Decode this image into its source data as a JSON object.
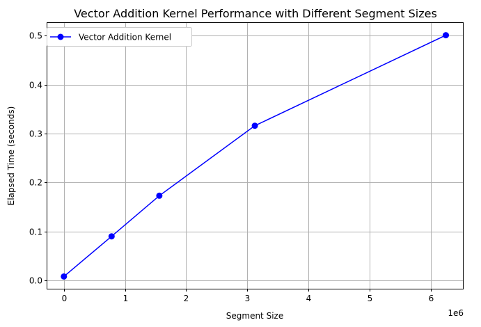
{
  "chart_data": {
    "type": "line",
    "title": "Vector Addition Kernel Performance with Different Segment Sizes",
    "xlabel": "Segment Size",
    "ylabel": "Elapsed Time (seconds)",
    "x_offset_text": "1e6",
    "x_scale": 1000000,
    "xlim": [
      -270000,
      6540000
    ],
    "ylim": [
      -0.017,
      0.526
    ],
    "x_ticks": [
      0,
      1000000,
      2000000,
      3000000,
      4000000,
      5000000,
      6000000
    ],
    "x_tick_labels": [
      "0",
      "1",
      "2",
      "3",
      "4",
      "5",
      "6"
    ],
    "y_ticks": [
      0.0,
      0.1,
      0.2,
      0.3,
      0.4,
      0.5
    ],
    "y_tick_labels": [
      "0.0",
      "0.1",
      "0.2",
      "0.3",
      "0.4",
      "0.5"
    ],
    "grid": true,
    "legend_position": "top-left",
    "series": [
      {
        "name": "Vector Addition Kernel",
        "color": "#0000ff",
        "marker": "circle",
        "x": [
          1024,
          781250,
          1562500,
          3125000,
          6250000
        ],
        "y": [
          0.008,
          0.09,
          0.173,
          0.316,
          0.501
        ]
      }
    ]
  }
}
